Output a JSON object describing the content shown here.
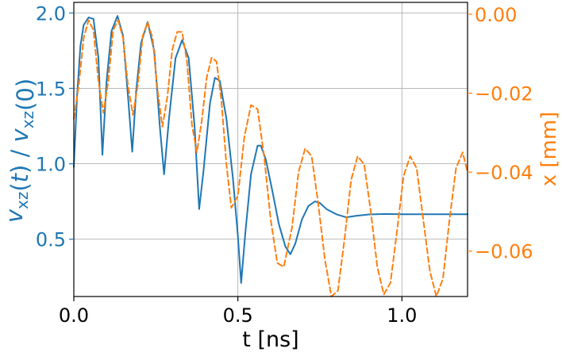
{
  "chart_data": {
    "type": "line",
    "title": "",
    "xlabel": "t [ns]",
    "ylabel_left": "v_xz(t) / v_xz(0)",
    "ylabel_right": "x [mm]",
    "xlim": [
      0.0,
      1.2
    ],
    "ylim_left": [
      0.12,
      2.07
    ],
    "ylim_right": [
      -0.0715,
      0.003
    ],
    "xticks": [
      {
        "value": 0.0,
        "label": "0.0"
      },
      {
        "value": 0.5,
        "label": "0.5"
      },
      {
        "value": 1.0,
        "label": "1.0"
      }
    ],
    "yticks_left": [
      {
        "value": 0.5,
        "label": "0.5"
      },
      {
        "value": 1.0,
        "label": "1.0"
      },
      {
        "value": 1.5,
        "label": "1.5"
      },
      {
        "value": 2.0,
        "label": "2.0"
      }
    ],
    "yticks_right": [
      {
        "value": -0.06,
        "label": "−0.06"
      },
      {
        "value": -0.04,
        "label": "−0.04"
      },
      {
        "value": -0.02,
        "label": "−0.02"
      },
      {
        "value": 0.0,
        "label": "0.00"
      }
    ],
    "grid": true,
    "series": [
      {
        "axis": "left",
        "style": "solid",
        "color": "#1f77b4",
        "x": [
          0.0,
          0.01,
          0.02,
          0.03,
          0.045,
          0.06,
          0.075,
          0.087,
          0.1,
          0.115,
          0.133,
          0.15,
          0.165,
          0.178,
          0.19,
          0.205,
          0.225,
          0.245,
          0.262,
          0.275,
          0.29,
          0.31,
          0.33,
          0.35,
          0.368,
          0.382,
          0.395,
          0.415,
          0.43,
          0.445,
          0.465,
          0.485,
          0.5,
          0.51,
          0.523,
          0.54,
          0.56,
          0.57,
          0.585,
          0.605,
          0.625,
          0.645,
          0.66,
          0.675,
          0.695,
          0.715,
          0.735,
          0.75,
          0.77,
          0.8,
          0.83,
          0.86,
          0.9,
          0.95,
          1.0,
          1.1,
          1.2
        ],
        "y": [
          0.98,
          1.45,
          1.78,
          1.92,
          1.97,
          1.96,
          1.7,
          1.06,
          1.55,
          1.88,
          1.98,
          1.85,
          1.45,
          1.08,
          1.48,
          1.8,
          1.94,
          1.75,
          1.25,
          0.93,
          1.3,
          1.7,
          1.82,
          1.7,
          1.25,
          0.7,
          0.95,
          1.4,
          1.57,
          1.55,
          1.3,
          0.9,
          0.52,
          0.21,
          0.55,
          0.93,
          1.12,
          1.12,
          1.03,
          0.82,
          0.6,
          0.45,
          0.4,
          0.47,
          0.63,
          0.72,
          0.75,
          0.74,
          0.7,
          0.665,
          0.645,
          0.655,
          0.664,
          0.667,
          0.665,
          0.665,
          0.665
        ]
      },
      {
        "axis": "right",
        "style": "dashed",
        "color": "#ff7f0e",
        "x": [
          0.0,
          0.015,
          0.03,
          0.045,
          0.06,
          0.075,
          0.09,
          0.105,
          0.12,
          0.135,
          0.15,
          0.165,
          0.18,
          0.195,
          0.21,
          0.225,
          0.24,
          0.255,
          0.27,
          0.285,
          0.3,
          0.315,
          0.33,
          0.345,
          0.36,
          0.375,
          0.39,
          0.405,
          0.42,
          0.435,
          0.45,
          0.465,
          0.48,
          0.5,
          0.52,
          0.54,
          0.56,
          0.58,
          0.6,
          0.62,
          0.64,
          0.665,
          0.685,
          0.705,
          0.725,
          0.745,
          0.765,
          0.785,
          0.805,
          0.825,
          0.845,
          0.865,
          0.885,
          0.905,
          0.925,
          0.945,
          0.965,
          0.985,
          1.005,
          1.025,
          1.045,
          1.065,
          1.085,
          1.105,
          1.125,
          1.145,
          1.165,
          1.185,
          1.2
        ],
        "y": [
          -0.0265,
          -0.018,
          -0.006,
          -0.0015,
          -0.004,
          -0.017,
          -0.025,
          -0.017,
          -0.004,
          -0.0015,
          -0.006,
          -0.018,
          -0.0255,
          -0.018,
          -0.0055,
          -0.002,
          -0.006,
          -0.019,
          -0.0285,
          -0.021,
          -0.009,
          -0.0045,
          -0.0045,
          -0.012,
          -0.028,
          -0.035,
          -0.027,
          -0.016,
          -0.011,
          -0.012,
          -0.022,
          -0.038,
          -0.049,
          -0.046,
          -0.031,
          -0.023,
          -0.024,
          -0.036,
          -0.052,
          -0.063,
          -0.064,
          -0.054,
          -0.04,
          -0.034,
          -0.036,
          -0.048,
          -0.062,
          -0.0715,
          -0.07,
          -0.057,
          -0.042,
          -0.036,
          -0.038,
          -0.05,
          -0.064,
          -0.071,
          -0.068,
          -0.055,
          -0.041,
          -0.036,
          -0.039,
          -0.052,
          -0.065,
          -0.0715,
          -0.067,
          -0.052,
          -0.039,
          -0.035,
          -0.04
        ]
      }
    ]
  }
}
